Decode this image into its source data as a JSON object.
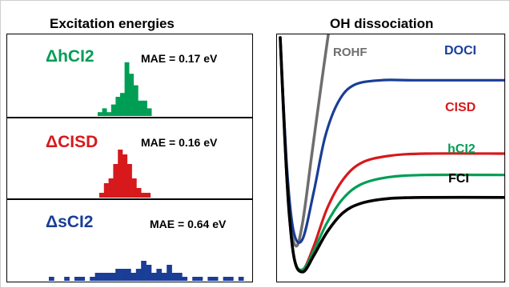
{
  "panel_titles": {
    "left": "Excitation energies",
    "right": "OH dissociation"
  },
  "colors": {
    "hci2": "#009e55",
    "cisd": "#d7191c",
    "sci2": "#1a3d96",
    "rohf": "#6e6e6e",
    "doci": "#1a3d96",
    "fci": "#000000"
  },
  "chart_data": [
    {
      "type": "bar",
      "subtype": "histogram",
      "panel": "Excitation energies",
      "series": [
        {
          "name": "ΔhCI2",
          "mae_text": "MAE = 0.17 eV",
          "color": "#009e55",
          "bin_counts": [
            1,
            2,
            1,
            3,
            5,
            6,
            14,
            11,
            8,
            4,
            4,
            2
          ]
        },
        {
          "name": "ΔCISD",
          "mae_text": "MAE = 0.16 eV",
          "color": "#d7191c",
          "bin_counts": [
            1,
            3,
            4,
            7,
            10,
            9,
            7,
            4,
            2,
            1,
            1
          ]
        },
        {
          "name": "ΔsCI2",
          "mae_text": "MAE = 0.64 eV",
          "color": "#1a3d96",
          "bin_counts": [
            1,
            0,
            0,
            1,
            0,
            1,
            1,
            0,
            1,
            2,
            2,
            2,
            2,
            3,
            3,
            3,
            2,
            3,
            5,
            4,
            2,
            3,
            2,
            4,
            2,
            2,
            1,
            0,
            1,
            1,
            0,
            1,
            1,
            0,
            1,
            1,
            0,
            1
          ]
        }
      ]
    },
    {
      "type": "line",
      "panel": "OH dissociation",
      "series": [
        {
          "name": "ROHF",
          "color": "#6e6e6e",
          "points": [
            [
              0.0,
              0.0
            ],
            [
              0.02,
              0.4
            ],
            [
              0.04,
              0.75
            ],
            [
              0.07,
              0.88
            ],
            [
              0.1,
              0.78
            ],
            [
              0.14,
              0.5
            ],
            [
              0.18,
              0.22
            ],
            [
              0.22,
              -0.05
            ]
          ]
        },
        {
          "name": "DOCI",
          "color": "#1a3d96",
          "points": [
            [
              0.0,
              0.0
            ],
            [
              0.03,
              0.55
            ],
            [
              0.06,
              0.82
            ],
            [
              0.1,
              0.85
            ],
            [
              0.15,
              0.65
            ],
            [
              0.2,
              0.42
            ],
            [
              0.26,
              0.27
            ],
            [
              0.33,
              0.2
            ],
            [
              0.45,
              0.18
            ],
            [
              0.6,
              0.18
            ],
            [
              1.0,
              0.18
            ]
          ]
        },
        {
          "name": "CISD",
          "color": "#d7191c",
          "points": [
            [
              0.0,
              0.0
            ],
            [
              0.03,
              0.6
            ],
            [
              0.06,
              0.92
            ],
            [
              0.1,
              0.98
            ],
            [
              0.15,
              0.88
            ],
            [
              0.21,
              0.72
            ],
            [
              0.28,
              0.6
            ],
            [
              0.36,
              0.53
            ],
            [
              0.48,
              0.5
            ],
            [
              0.65,
              0.49
            ],
            [
              1.0,
              0.49
            ]
          ]
        },
        {
          "name": "hCI2",
          "color": "#009e55",
          "points": [
            [
              0.0,
              0.0
            ],
            [
              0.03,
              0.6
            ],
            [
              0.06,
              0.92
            ],
            [
              0.1,
              0.98
            ],
            [
              0.15,
              0.9
            ],
            [
              0.21,
              0.78
            ],
            [
              0.28,
              0.68
            ],
            [
              0.36,
              0.62
            ],
            [
              0.48,
              0.59
            ],
            [
              0.65,
              0.58
            ],
            [
              1.0,
              0.58
            ]
          ]
        },
        {
          "name": "FCI",
          "color": "#000000",
          "points": [
            [
              0.0,
              0.0
            ],
            [
              0.03,
              0.6
            ],
            [
              0.06,
              0.92
            ],
            [
              0.1,
              0.99
            ],
            [
              0.15,
              0.92
            ],
            [
              0.21,
              0.82
            ],
            [
              0.28,
              0.74
            ],
            [
              0.36,
              0.7
            ],
            [
              0.48,
              0.68
            ],
            [
              0.65,
              0.675
            ],
            [
              1.0,
              0.675
            ]
          ]
        }
      ]
    }
  ]
}
